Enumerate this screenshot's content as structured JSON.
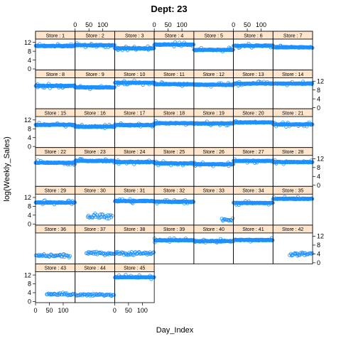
{
  "chart_data": {
    "type": "scatter",
    "title": "Dept: 23",
    "xlabel": "Day_Index",
    "ylabel": "log(Weekly_Sales)",
    "xlim": [
      0,
      143
    ],
    "ylim": [
      -0.5,
      13.5
    ],
    "xticks": [
      0,
      50,
      100
    ],
    "yticks": [
      0,
      4,
      8,
      12
    ],
    "x_tick_labels": [
      "0",
      "50",
      "100"
    ],
    "y_tick_labels": [
      "0",
      "4",
      "8",
      "12"
    ],
    "strip_prefix": "Store : ",
    "point_color": "#1e90ff",
    "strip_color": "#ffe5cc",
    "panels": [
      {
        "store": "1",
        "level": 10.4,
        "start": 0,
        "end": 143,
        "spread": 0.35
      },
      {
        "store": "2",
        "level": 10.7,
        "start": 0,
        "end": 143,
        "spread": 0.35
      },
      {
        "store": "3",
        "level": 9.3,
        "start": 0,
        "end": 143,
        "spread": 0.35
      },
      {
        "store": "4",
        "level": 11.0,
        "start": 0,
        "end": 143,
        "spread": 0.35
      },
      {
        "store": "5",
        "level": 8.6,
        "start": 0,
        "end": 143,
        "spread": 0.35
      },
      {
        "store": "6",
        "level": 10.5,
        "start": 0,
        "end": 143,
        "spread": 0.35
      },
      {
        "store": "7",
        "level": 9.8,
        "start": 0,
        "end": 143,
        "spread": 0.35
      },
      {
        "store": "8",
        "level": 9.9,
        "start": 0,
        "end": 143,
        "spread": 0.35
      },
      {
        "store": "9",
        "level": 9.2,
        "start": 0,
        "end": 143,
        "spread": 0.35
      },
      {
        "store": "10",
        "level": 11.3,
        "start": 0,
        "end": 143,
        "spread": 0.3
      },
      {
        "store": "11",
        "level": 10.6,
        "start": 0,
        "end": 143,
        "spread": 0.35
      },
      {
        "store": "12",
        "level": 10.4,
        "start": 0,
        "end": 143,
        "spread": 0.35
      },
      {
        "store": "13",
        "level": 10.9,
        "start": 0,
        "end": 143,
        "spread": 0.35
      },
      {
        "store": "14",
        "level": 10.9,
        "start": 0,
        "end": 143,
        "spread": 0.35
      },
      {
        "store": "15",
        "level": 9.8,
        "start": 0,
        "end": 143,
        "spread": 0.35
      },
      {
        "store": "16",
        "level": 9.0,
        "start": 0,
        "end": 143,
        "spread": 0.4
      },
      {
        "store": "17",
        "level": 9.7,
        "start": 0,
        "end": 143,
        "spread": 0.4
      },
      {
        "store": "18",
        "level": 10.5,
        "start": 0,
        "end": 143,
        "spread": 0.35
      },
      {
        "store": "19",
        "level": 10.4,
        "start": 0,
        "end": 143,
        "spread": 0.35
      },
      {
        "store": "20",
        "level": 10.9,
        "start": 0,
        "end": 143,
        "spread": 0.35
      },
      {
        "store": "21",
        "level": 10.0,
        "start": 0,
        "end": 143,
        "spread": 0.35
      },
      {
        "store": "22",
        "level": 10.2,
        "start": 0,
        "end": 143,
        "spread": 0.35
      },
      {
        "store": "23",
        "level": 11.0,
        "start": 0,
        "end": 143,
        "spread": 0.35
      },
      {
        "store": "24",
        "level": 10.5,
        "start": 0,
        "end": 143,
        "spread": 0.35
      },
      {
        "store": "25",
        "level": 9.9,
        "start": 0,
        "end": 143,
        "spread": 0.35
      },
      {
        "store": "26",
        "level": 9.5,
        "start": 0,
        "end": 143,
        "spread": 0.35
      },
      {
        "store": "27",
        "level": 11.0,
        "start": 0,
        "end": 143,
        "spread": 0.35
      },
      {
        "store": "28",
        "level": 10.5,
        "start": 0,
        "end": 143,
        "spread": 0.35
      },
      {
        "store": "29",
        "level": 9.7,
        "start": 0,
        "end": 143,
        "spread": 0.35
      },
      {
        "store": "30",
        "level": 3.5,
        "start": 45,
        "end": 135,
        "spread": 1.8
      },
      {
        "store": "31",
        "level": 10.4,
        "start": 0,
        "end": 143,
        "spread": 0.35
      },
      {
        "store": "32",
        "level": 10.1,
        "start": 0,
        "end": 143,
        "spread": 0.35
      },
      {
        "store": "33",
        "level": 2.0,
        "start": 100,
        "end": 143,
        "spread": 1.4
      },
      {
        "store": "34",
        "level": 9.5,
        "start": 0,
        "end": 143,
        "spread": 0.35
      },
      {
        "store": "35",
        "level": 11.4,
        "start": 0,
        "end": 143,
        "spread": 0.3
      },
      {
        "store": "36",
        "level": 3.2,
        "start": 0,
        "end": 125,
        "spread": 0.9
      },
      {
        "store": "37",
        "level": 4.3,
        "start": 40,
        "end": 143,
        "spread": 1.0
      },
      {
        "store": "38",
        "level": 4.3,
        "start": 0,
        "end": 143,
        "spread": 1.2
      },
      {
        "store": "39",
        "level": 10.2,
        "start": 0,
        "end": 143,
        "spread": 0.35
      },
      {
        "store": "40",
        "level": 9.8,
        "start": 0,
        "end": 143,
        "spread": 0.4
      },
      {
        "store": "41",
        "level": 10.3,
        "start": 0,
        "end": 143,
        "spread": 0.35
      },
      {
        "store": "42",
        "level": 3.9,
        "start": 60,
        "end": 143,
        "spread": 1.0
      },
      {
        "store": "43",
        "level": 3.3,
        "start": 40,
        "end": 140,
        "spread": 0.9
      },
      {
        "store": "44",
        "level": 3.0,
        "start": 0,
        "end": 143,
        "spread": 0.8
      },
      {
        "store": "45",
        "level": 11.0,
        "start": 0,
        "end": 143,
        "spread": 0.3
      }
    ]
  }
}
